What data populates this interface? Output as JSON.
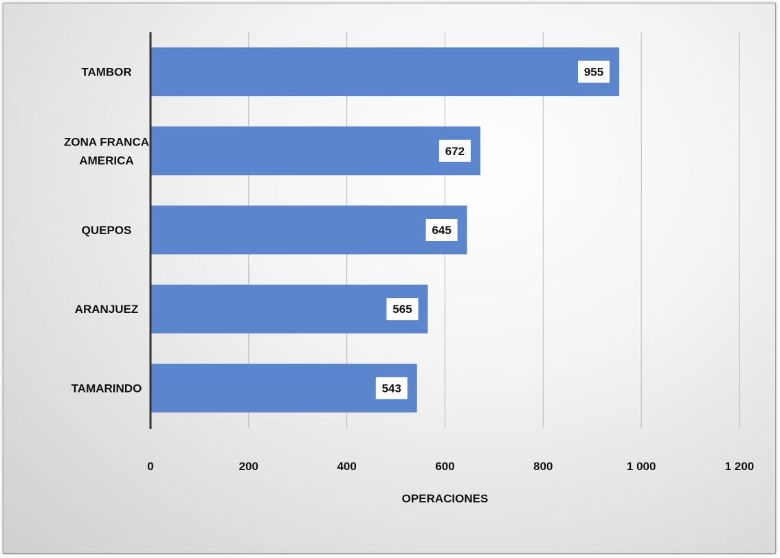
{
  "chart_data": {
    "type": "bar",
    "orientation": "horizontal",
    "categories": [
      "TAMBOR",
      "ZONA FRANCA AMERICA",
      "QUEPOS",
      "ARANJUEZ",
      "TAMARINDO"
    ],
    "category_label_lines": [
      [
        "TAMBOR"
      ],
      [
        "ZONA FRANCA",
        "AMERICA"
      ],
      [
        "QUEPOS"
      ],
      [
        "ARANJUEZ"
      ],
      [
        "TAMARINDO"
      ]
    ],
    "values": [
      955,
      672,
      645,
      565,
      543
    ],
    "data_labels": [
      "955",
      "672",
      "645",
      "565",
      "543"
    ],
    "xlabel": "OPERACIONES",
    "ylabel": "",
    "xlim": [
      0,
      1200
    ],
    "x_ticks": [
      0,
      200,
      400,
      600,
      800,
      1000,
      1200
    ],
    "x_tick_labels": [
      "0",
      "200",
      "400",
      "600",
      "800",
      "1 000",
      "1 200"
    ],
    "grid": true,
    "legend": "none",
    "bar_color": "#5b86cd",
    "gridline_color": "#b4b4b4",
    "axis_color": "#333333"
  }
}
